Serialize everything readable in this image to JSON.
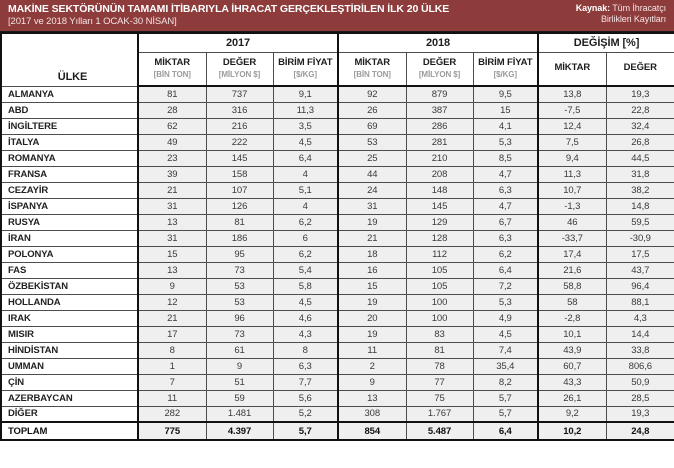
{
  "header": {
    "title": "MAKİNE SEKTÖRÜNÜN TAMAMI İTİBARIYLA İHRACAT GERÇEKLEŞTİRİLEN İLK 20 ÜLKE",
    "subtitle": "[2017 ve 2018 Yılları 1 OCAK-30 NİSAN]",
    "source_label": "Kaynak:",
    "source_line1": "Tüm İhracatçı",
    "source_line2": "Birlikleri Kayıtları",
    "bar_color": "#8d3b3b"
  },
  "table": {
    "col_country": "ÜLKE",
    "groups": [
      {
        "label": "2017"
      },
      {
        "label": "2018"
      },
      {
        "label": "DEĞİŞİM [%]"
      }
    ],
    "subheaders": {
      "miktar": "MİKTAR",
      "miktar_unit": "[BİN TON]",
      "deger": "DEĞER",
      "deger_unit": "[MİLYON $]",
      "birim": "BİRİM FİYAT",
      "birim_unit": "[$/KG]"
    },
    "rows": [
      {
        "country": "ALMANYA",
        "y2017": [
          "81",
          "737",
          "9,1"
        ],
        "y2018": [
          "92",
          "879",
          "9,5"
        ],
        "change": [
          "13,8",
          "19,3"
        ]
      },
      {
        "country": "ABD",
        "y2017": [
          "28",
          "316",
          "11,3"
        ],
        "y2018": [
          "26",
          "387",
          "15"
        ],
        "change": [
          "-7,5",
          "22,8"
        ]
      },
      {
        "country": "İNGİLTERE",
        "y2017": [
          "62",
          "216",
          "3,5"
        ],
        "y2018": [
          "69",
          "286",
          "4,1"
        ],
        "change": [
          "12,4",
          "32,4"
        ]
      },
      {
        "country": "İTALYA",
        "y2017": [
          "49",
          "222",
          "4,5"
        ],
        "y2018": [
          "53",
          "281",
          "5,3"
        ],
        "change": [
          "7,5",
          "26,8"
        ]
      },
      {
        "country": "ROMANYA",
        "y2017": [
          "23",
          "145",
          "6,4"
        ],
        "y2018": [
          "25",
          "210",
          "8,5"
        ],
        "change": [
          "9,4",
          "44,5"
        ]
      },
      {
        "country": "FRANSA",
        "y2017": [
          "39",
          "158",
          "4"
        ],
        "y2018": [
          "44",
          "208",
          "4,7"
        ],
        "change": [
          "11,3",
          "31,8"
        ]
      },
      {
        "country": "CEZAYİR",
        "y2017": [
          "21",
          "107",
          "5,1"
        ],
        "y2018": [
          "24",
          "148",
          "6,3"
        ],
        "change": [
          "10,7",
          "38,2"
        ]
      },
      {
        "country": "İSPANYA",
        "y2017": [
          "31",
          "126",
          "4"
        ],
        "y2018": [
          "31",
          "145",
          "4,7"
        ],
        "change": [
          "-1,3",
          "14,8"
        ]
      },
      {
        "country": "RUSYA",
        "y2017": [
          "13",
          "81",
          "6,2"
        ],
        "y2018": [
          "19",
          "129",
          "6,7"
        ],
        "change": [
          "46",
          "59,5"
        ]
      },
      {
        "country": "İRAN",
        "y2017": [
          "31",
          "186",
          "6"
        ],
        "y2018": [
          "21",
          "128",
          "6,3"
        ],
        "change": [
          "-33,7",
          "-30,9"
        ]
      },
      {
        "country": "POLONYA",
        "y2017": [
          "15",
          "95",
          "6,2"
        ],
        "y2018": [
          "18",
          "112",
          "6,2"
        ],
        "change": [
          "17,4",
          "17,5"
        ]
      },
      {
        "country": "FAS",
        "y2017": [
          "13",
          "73",
          "5,4"
        ],
        "y2018": [
          "16",
          "105",
          "6,4"
        ],
        "change": [
          "21,6",
          "43,7"
        ]
      },
      {
        "country": "ÖZBEKİSTAN",
        "y2017": [
          "9",
          "53",
          "5,8"
        ],
        "y2018": [
          "15",
          "105",
          "7,2"
        ],
        "change": [
          "58,8",
          "96,4"
        ]
      },
      {
        "country": "HOLLANDA",
        "y2017": [
          "12",
          "53",
          "4,5"
        ],
        "y2018": [
          "19",
          "100",
          "5,3"
        ],
        "change": [
          "58",
          "88,1"
        ]
      },
      {
        "country": "IRAK",
        "y2017": [
          "21",
          "96",
          "4,6"
        ],
        "y2018": [
          "20",
          "100",
          "4,9"
        ],
        "change": [
          "-2,8",
          "4,3"
        ]
      },
      {
        "country": "MISIR",
        "y2017": [
          "17",
          "73",
          "4,3"
        ],
        "y2018": [
          "19",
          "83",
          "4,5"
        ],
        "change": [
          "10,1",
          "14,4"
        ]
      },
      {
        "country": "HİNDİSTAN",
        "y2017": [
          "8",
          "61",
          "8"
        ],
        "y2018": [
          "11",
          "81",
          "7,4"
        ],
        "change": [
          "43,9",
          "33,8"
        ]
      },
      {
        "country": "UMMAN",
        "y2017": [
          "1",
          "9",
          "6,3"
        ],
        "y2018": [
          "2",
          "78",
          "35,4"
        ],
        "change": [
          "60,7",
          "806,6"
        ]
      },
      {
        "country": "ÇİN",
        "y2017": [
          "7",
          "51",
          "7,7"
        ],
        "y2018": [
          "9",
          "77",
          "8,2"
        ],
        "change": [
          "43,3",
          "50,9"
        ]
      },
      {
        "country": "AZERBAYCAN",
        "y2017": [
          "11",
          "59",
          "5,6"
        ],
        "y2018": [
          "13",
          "75",
          "5,7"
        ],
        "change": [
          "26,1",
          "28,5"
        ]
      },
      {
        "country": "DİĞER",
        "y2017": [
          "282",
          "1.481",
          "5,2"
        ],
        "y2018": [
          "308",
          "1.767",
          "5,7"
        ],
        "change": [
          "9,2",
          "19,3"
        ]
      }
    ],
    "total": {
      "country": "TOPLAM",
      "y2017": [
        "775",
        "4.397",
        "5,7"
      ],
      "y2018": [
        "854",
        "5.487",
        "6,4"
      ],
      "change": [
        "10,2",
        "24,8"
      ]
    }
  }
}
